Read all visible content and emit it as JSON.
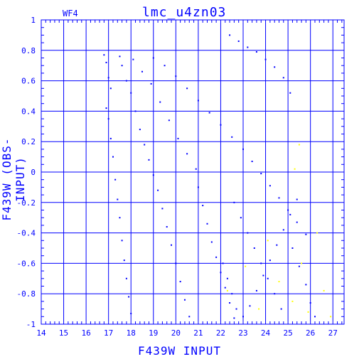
{
  "chart_data": {
    "type": "scatter",
    "title": "lmc_u4zn03",
    "chip": "WF4",
    "xlabel": "F439W INPUT",
    "ylabel": "F439W (OBS-INPUT)",
    "xlim": [
      14,
      27.5
    ],
    "ylim": [
      -1,
      1
    ],
    "x_ticks": [
      14,
      15,
      16,
      17,
      18,
      19,
      20,
      21,
      22,
      23,
      24,
      25,
      26,
      27
    ],
    "y_ticks": [
      -1,
      -0.8,
      -0.6,
      -0.4,
      -0.2,
      0,
      0.2,
      0.4,
      0.6,
      0.8,
      1
    ],
    "y_tick_labels": [
      "-1",
      "-0.8",
      "-0.6",
      "-0.4",
      "-0.2",
      "0",
      "0.2",
      "0.4",
      "0.6",
      "0.8",
      "1"
    ],
    "grid": true,
    "colors": {
      "axes": "#0000ff",
      "points": "#0000ff",
      "highlight_points": "#ffff00"
    },
    "series": [
      {
        "color": "#0000ff",
        "points": [
          [
            16.8,
            0.77
          ],
          [
            16.9,
            0.72
          ],
          [
            17.0,
            0.62
          ],
          [
            17.1,
            0.55
          ],
          [
            16.9,
            0.42
          ],
          [
            17.0,
            0.35
          ],
          [
            17.1,
            0.22
          ],
          [
            17.2,
            0.1
          ],
          [
            17.3,
            -0.05
          ],
          [
            17.4,
            -0.18
          ],
          [
            17.5,
            -0.3
          ],
          [
            17.6,
            -0.45
          ],
          [
            17.7,
            -0.58
          ],
          [
            17.8,
            -0.7
          ],
          [
            17.9,
            -0.82
          ],
          [
            18.0,
            -0.93
          ],
          [
            17.5,
            0.76
          ],
          [
            17.6,
            0.7
          ],
          [
            17.8,
            0.6
          ],
          [
            18.0,
            0.52
          ],
          [
            18.2,
            0.4
          ],
          [
            18.4,
            0.28
          ],
          [
            18.6,
            0.18
          ],
          [
            18.8,
            0.08
          ],
          [
            19.0,
            -0.02
          ],
          [
            19.2,
            -0.12
          ],
          [
            19.4,
            -0.24
          ],
          [
            19.6,
            -0.36
          ],
          [
            19.8,
            -0.48
          ],
          [
            20.0,
            -0.6
          ],
          [
            20.2,
            -0.72
          ],
          [
            20.4,
            -0.84
          ],
          [
            20.6,
            -0.95
          ],
          [
            18.1,
            0.74
          ],
          [
            18.5,
            0.66
          ],
          [
            18.9,
            0.58
          ],
          [
            19.3,
            0.46
          ],
          [
            19.7,
            0.34
          ],
          [
            20.1,
            0.22
          ],
          [
            20.5,
            0.12
          ],
          [
            20.9,
            0.02
          ],
          [
            21.0,
            -0.1
          ],
          [
            21.2,
            -0.22
          ],
          [
            21.4,
            -0.34
          ],
          [
            21.6,
            -0.46
          ],
          [
            21.8,
            -0.56
          ],
          [
            22.0,
            -0.66
          ],
          [
            22.2,
            -0.76
          ],
          [
            22.4,
            -0.86
          ],
          [
            22.6,
            -0.96
          ],
          [
            19.0,
            0.75
          ],
          [
            19.5,
            0.7
          ],
          [
            20.0,
            0.63
          ],
          [
            20.5,
            0.55
          ],
          [
            21.0,
            0.47
          ],
          [
            21.5,
            0.39
          ],
          [
            22.0,
            0.31
          ],
          [
            22.5,
            0.23
          ],
          [
            23.0,
            0.15
          ],
          [
            23.4,
            0.07
          ],
          [
            23.8,
            -0.01
          ],
          [
            24.2,
            -0.09
          ],
          [
            24.6,
            -0.17
          ],
          [
            25.0,
            -0.25
          ],
          [
            25.4,
            -0.33
          ],
          [
            25.8,
            -0.41
          ],
          [
            22.4,
            0.9
          ],
          [
            22.8,
            0.86
          ],
          [
            23.2,
            0.82
          ],
          [
            23.6,
            0.79
          ],
          [
            24.0,
            0.74
          ],
          [
            24.4,
            0.69
          ],
          [
            24.8,
            0.62
          ],
          [
            25.1,
            0.52
          ],
          [
            22.6,
            -0.2
          ],
          [
            22.9,
            -0.3
          ],
          [
            23.2,
            -0.4
          ],
          [
            23.5,
            -0.5
          ],
          [
            23.8,
            -0.6
          ],
          [
            24.1,
            -0.7
          ],
          [
            24.4,
            -0.8
          ],
          [
            24.7,
            -0.9
          ],
          [
            25.2,
            -0.5
          ],
          [
            25.5,
            -0.62
          ],
          [
            25.8,
            -0.74
          ],
          [
            26.0,
            -0.86
          ],
          [
            26.2,
            -0.95
          ],
          [
            22.1,
            -0.6
          ],
          [
            22.3,
            -0.7
          ],
          [
            22.5,
            -0.8
          ],
          [
            22.7,
            -0.9
          ],
          [
            23.0,
            -0.95
          ],
          [
            23.3,
            -0.88
          ],
          [
            23.6,
            -0.78
          ],
          [
            23.9,
            -0.68
          ],
          [
            24.2,
            -0.58
          ],
          [
            24.5,
            -0.48
          ],
          [
            24.8,
            -0.38
          ],
          [
            25.1,
            -0.28
          ],
          [
            25.4,
            -0.18
          ]
        ]
      },
      {
        "color": "#ffff00",
        "points": [
          [
            22.3,
            -0.78
          ],
          [
            23.1,
            -0.62
          ],
          [
            23.7,
            -0.9
          ],
          [
            24.1,
            -0.45
          ],
          [
            24.6,
            -0.72
          ],
          [
            25.2,
            -0.85
          ],
          [
            25.6,
            -0.6
          ],
          [
            25.9,
            -0.92
          ],
          [
            25.5,
            0.18
          ],
          [
            25.3,
            0.02
          ],
          [
            26.3,
            -0.4
          ],
          [
            26.6,
            -0.78
          ],
          [
            26.9,
            -0.95
          ]
        ]
      }
    ]
  }
}
